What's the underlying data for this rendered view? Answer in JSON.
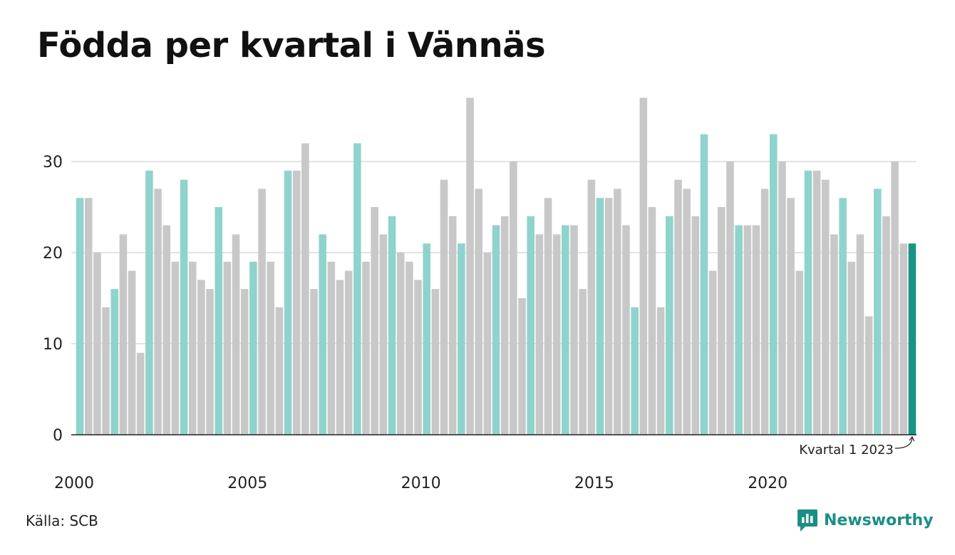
{
  "title": "Födda per kvartal i Vännäs",
  "source": "Källa: SCB",
  "brand": "Newsworthy",
  "colors": {
    "bar_default": "#c8c8c8",
    "bar_q1": "#8fd3cd",
    "bar_highlight": "#1a9385",
    "grid": "#e3e3e3",
    "axis": "#222222",
    "brand": "#1b8f85"
  },
  "chart_data": {
    "type": "bar",
    "title": "Födda per kvartal i Vännäs",
    "xlabel": "",
    "ylabel": "",
    "ylim": [
      0,
      37
    ],
    "yticks": [
      0,
      10,
      20,
      30
    ],
    "grid": true,
    "x_ticks": [
      "2000",
      "2005",
      "2010",
      "2015",
      "2020"
    ],
    "first_quarter": "2000-Q1",
    "annotation": "Kvartal 1 2023",
    "highlight_index": 96,
    "values": [
      26,
      26,
      20,
      14,
      16,
      22,
      18,
      9,
      29,
      27,
      23,
      19,
      28,
      19,
      17,
      16,
      25,
      19,
      22,
      16,
      19,
      27,
      19,
      14,
      29,
      29,
      32,
      16,
      22,
      19,
      17,
      18,
      32,
      19,
      25,
      22,
      24,
      20,
      19,
      17,
      21,
      16,
      28,
      24,
      21,
      37,
      27,
      20,
      23,
      24,
      30,
      15,
      24,
      22,
      26,
      22,
      23,
      23,
      16,
      28,
      26,
      26,
      27,
      23,
      14,
      37,
      25,
      14,
      24,
      28,
      27,
      24,
      33,
      18,
      25,
      30,
      23,
      23,
      23,
      27,
      33,
      30,
      26,
      18,
      29,
      29,
      28,
      22,
      26,
      19,
      22,
      13,
      27,
      24,
      30,
      21,
      21
    ]
  }
}
